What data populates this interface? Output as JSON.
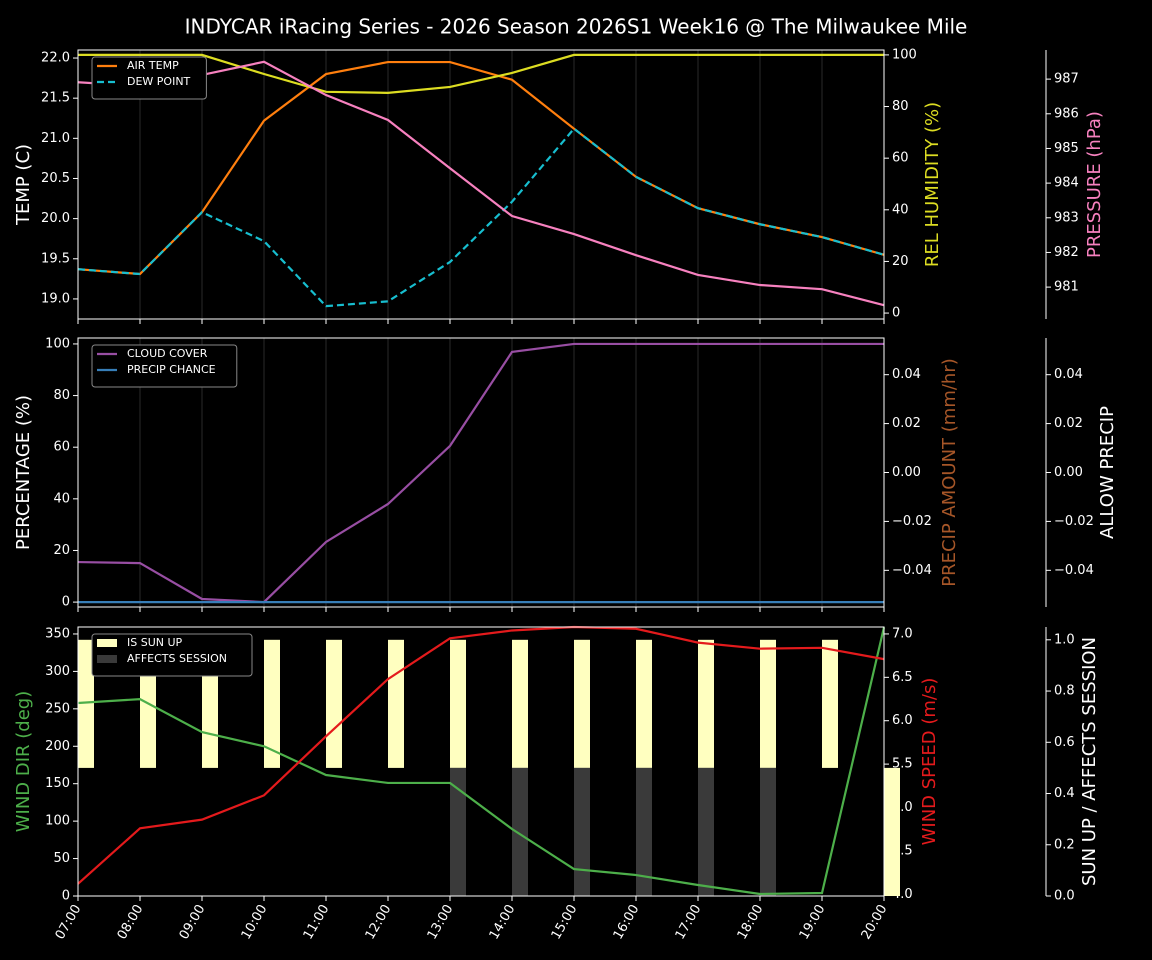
{
  "chart_data": [
    {
      "type": "line",
      "title": "INDYCAR iRacing Series - 2026 Season 2026S1 Week16 @ The Milwaukee Mile",
      "ylabel": "TEMP (C)",
      "ylabel_color": "#ffffff",
      "y2label": "REL HUMIDITY (%)",
      "y2label_color": "#dddd22",
      "y3label": "PRESSURE (hPa)",
      "y3label_color": "#f781bf",
      "ylim": [
        18.75,
        22.1
      ],
      "yticks": [
        {
          "value": 19.0,
          "label": "19.0"
        },
        {
          "value": 19.5,
          "label": "19.5"
        },
        {
          "value": 20.0,
          "label": "20.0"
        },
        {
          "value": 20.5,
          "label": "20.5"
        },
        {
          "value": 21.0,
          "label": "21.0"
        },
        {
          "value": 21.5,
          "label": "21.5"
        },
        {
          "value": 22.0,
          "label": "22.0"
        }
      ],
      "y2lim": [
        -2.3,
        101.9
      ],
      "y2ticks": [
        0,
        20,
        40,
        60,
        80,
        100
      ],
      "y3lim": [
        980.08,
        987.84
      ],
      "y3ticks": [
        981,
        982,
        983,
        984,
        985,
        986,
        987
      ],
      "grid": true,
      "series": [
        {
          "name": "AIR TEMP",
          "color": "#ff7f0e",
          "values": [
            19.37,
            19.31,
            20.08,
            21.22,
            21.8,
            21.95,
            21.95,
            21.73,
            21.12,
            20.52,
            20.13,
            19.93,
            19.77,
            19.55
          ]
        },
        {
          "name": "DEW POINT",
          "color": "#17becf",
          "dashed": true,
          "values": [
            19.37,
            19.31,
            20.08,
            19.72,
            18.91,
            18.97,
            19.46,
            20.21,
            21.12,
            20.52,
            20.13,
            19.93,
            19.77,
            19.55
          ]
        },
        {
          "color": "#dddd22",
          "axis": "y2",
          "values": [
            100,
            100,
            100,
            92.6,
            85.7,
            85.3,
            87.6,
            93,
            100,
            100,
            100,
            100,
            100,
            100
          ]
        },
        {
          "color": "#f781bf",
          "axis": "y3",
          "values": [
            986.91,
            986.8,
            987.12,
            987.5,
            986.54,
            985.82,
            984.43,
            983.05,
            982.53,
            981.92,
            981.35,
            981.06,
            980.94,
            980.48
          ]
        }
      ]
    },
    {
      "type": "line",
      "ylabel": "PERCENTAGE (%)",
      "ylabel_color": "#ffffff",
      "y2label": "PRECIP AMOUNT (mm/hr)",
      "y2label_color": "#a65628",
      "y3label": "ALLOW PRECIP",
      "y3label_color": "#ffffff",
      "ylim": [
        -1.9,
        102.3
      ],
      "yticks": [
        0,
        20,
        40,
        60,
        80,
        100
      ],
      "y2lim": [
        -0.055,
        0.055
      ],
      "y2ticks": [
        {
          "value": -0.04,
          "label": "−0.04"
        },
        {
          "value": -0.02,
          "label": "−0.02"
        },
        {
          "value": 0,
          "label": "0.00"
        },
        0.02,
        0.04
      ],
      "y3lim": [
        -0.055,
        0.055
      ],
      "y3ticks": [
        {
          "value": -0.04,
          "label": "−0.04"
        },
        {
          "value": -0.02,
          "label": "−0.02"
        },
        {
          "value": 0,
          "label": "0.00"
        },
        0.02,
        0.04
      ],
      "grid": true,
      "series": [
        {
          "name": "CLOUD COVER",
          "color": "#984ea3",
          "values": [
            15.5,
            15.1,
            1.2,
            0,
            23.3,
            38,
            60.5,
            96.9,
            100,
            100,
            100,
            100,
            100,
            100
          ]
        },
        {
          "name": "PRECIP CHANCE",
          "color": "#377eb8",
          "values": [
            0,
            0,
            0,
            0,
            0,
            0,
            0,
            0,
            0,
            0,
            0,
            0,
            0,
            0
          ]
        }
      ]
    },
    {
      "type": "line",
      "ylabel": "WIND DIR (deg)",
      "ylabel_color": "#4daf4a",
      "y2label": "WIND SPEED (m/s)",
      "y2label_color": "#e41a1c",
      "y3label": "SUN UP / AFFECTS SESSION",
      "y3label_color": "#ffffff",
      "categories": [
        "07:00",
        "08:00",
        "09:00",
        "10:00",
        "11:00",
        "12:00",
        "13:00",
        "14:00",
        "15:00",
        "16:00",
        "17:00",
        "18:00",
        "19:00",
        "20:00"
      ],
      "ylim": [
        0,
        359.3
      ],
      "yticks": [
        0,
        50,
        100,
        150,
        200,
        250,
        300,
        350
      ],
      "y2lim": [
        3.98,
        7.08
      ],
      "y2ticks": [
        {
          "value": 4.0,
          "label": "4.0"
        },
        {
          "value": 4.5,
          "label": "4.5"
        },
        {
          "value": 5.0,
          "label": "5.0"
        },
        {
          "value": 5.5,
          "label": "5.5"
        },
        {
          "value": 6.0,
          "label": "6.0"
        },
        {
          "value": 6.5,
          "label": "6.5"
        },
        {
          "value": 7.0,
          "label": "7.0"
        }
      ],
      "y3lim": [
        0,
        1.05
      ],
      "y3ticks": [
        {
          "value": 0,
          "label": "0.0"
        },
        {
          "value": 0.2,
          "label": "0.2"
        },
        {
          "value": 0.4,
          "label": "0.4"
        },
        {
          "value": 0.6,
          "label": "0.6"
        },
        {
          "value": 0.8,
          "label": "0.8"
        },
        {
          "value": 1,
          "label": "1.0"
        }
      ],
      "grid": false,
      "series": [
        {
          "name": "IS SUN UP",
          "type": "bar",
          "color": "#ffffc0",
          "axis": "y3",
          "base": 0.5,
          "values": [
            1,
            1,
            1,
            1,
            1,
            1,
            1,
            1,
            1,
            1,
            1,
            1,
            1,
            0
          ]
        },
        {
          "name": "AFFECTS SESSION",
          "type": "bar",
          "color": "#3a3a3a",
          "axis": "y3",
          "base": 0,
          "values": [
            0,
            0,
            0,
            0,
            0,
            0,
            0.5,
            0.5,
            0.5,
            0.5,
            0.5,
            0.5,
            0,
            0
          ]
        },
        {
          "color": "#4daf4a",
          "values": [
            257.8,
            263,
            219,
            200,
            161.6,
            151,
            151,
            89.5,
            36,
            28,
            14.7,
            2.7,
            4,
            359
          ]
        },
        {
          "color": "#e41a1c",
          "axis": "y2",
          "values": [
            4.12,
            4.76,
            4.86,
            5.14,
            5.82,
            6.48,
            6.95,
            7.04,
            7.08,
            7.06,
            6.9,
            6.83,
            6.84,
            6.71
          ]
        }
      ]
    }
  ]
}
